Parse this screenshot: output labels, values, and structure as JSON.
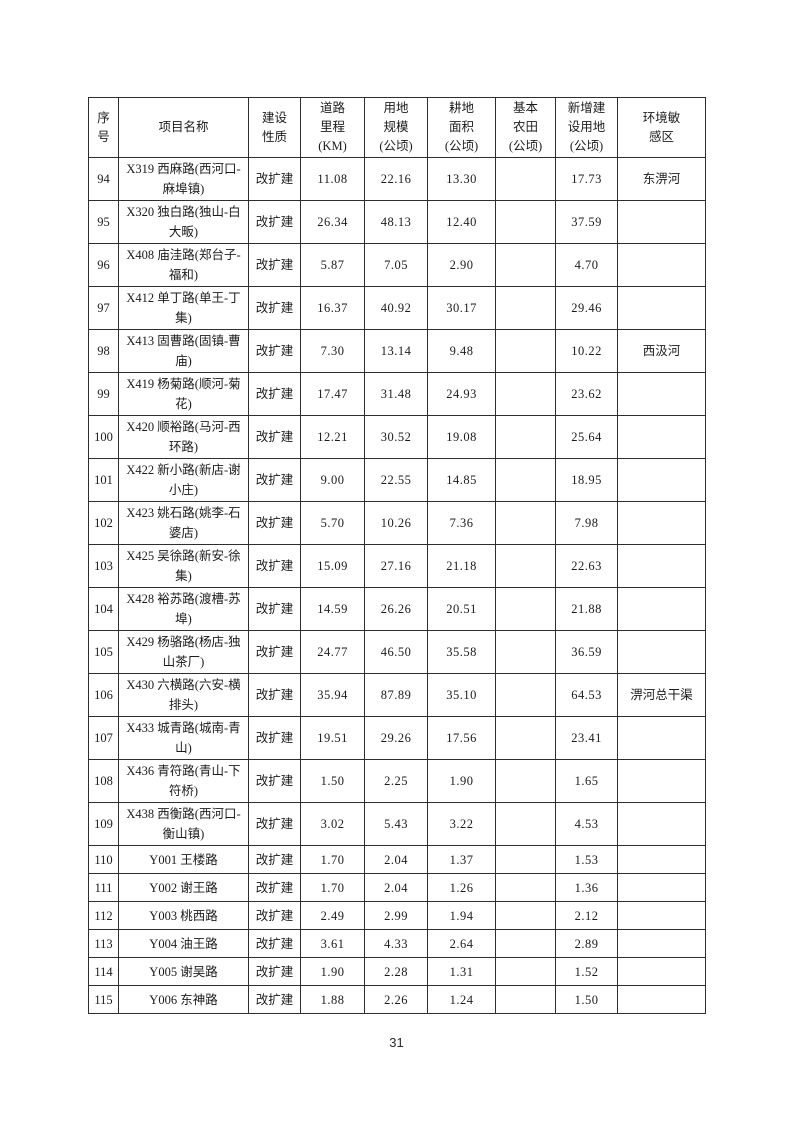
{
  "document": {
    "page_number": "31"
  },
  "table": {
    "columns": [
      {
        "key": "seq",
        "label": "序\n号"
      },
      {
        "key": "name",
        "label": "项目名称"
      },
      {
        "key": "nature",
        "label": "建设\n性质"
      },
      {
        "key": "mileage",
        "label": "道路\n里程\n(KM)"
      },
      {
        "key": "land",
        "label": "用地\n规模\n(公顷)"
      },
      {
        "key": "cultivated",
        "label": "耕地\n面积\n(公顷)"
      },
      {
        "key": "basic_farmland",
        "label": "基本\n农田\n(公顷)"
      },
      {
        "key": "new_land",
        "label": "新增建\n设用地\n(公顷)"
      },
      {
        "key": "env",
        "label": "环境敏\n感区"
      }
    ],
    "rows": [
      {
        "seq": "94",
        "name": "X319 西麻路(西河口-麻埠镇)",
        "nature": "改扩建",
        "mileage": "11.08",
        "land": "22.16",
        "cultivated": "13.30",
        "basic_farmland": "",
        "new_land": "17.73",
        "env": "东淠河"
      },
      {
        "seq": "95",
        "name": "X320 独白路(独山-白大畈)",
        "nature": "改扩建",
        "mileage": "26.34",
        "land": "48.13",
        "cultivated": "12.40",
        "basic_farmland": "",
        "new_land": "37.59",
        "env": ""
      },
      {
        "seq": "96",
        "name": "X408 庙洼路(郑台子-福和)",
        "nature": "改扩建",
        "mileage": "5.87",
        "land": "7.05",
        "cultivated": "2.90",
        "basic_farmland": "",
        "new_land": "4.70",
        "env": ""
      },
      {
        "seq": "97",
        "name": "X412 单丁路(单王-丁集)",
        "nature": "改扩建",
        "mileage": "16.37",
        "land": "40.92",
        "cultivated": "30.17",
        "basic_farmland": "",
        "new_land": "29.46",
        "env": ""
      },
      {
        "seq": "98",
        "name": "X413 固曹路(固镇-曹庙)",
        "nature": "改扩建",
        "mileage": "7.30",
        "land": "13.14",
        "cultivated": "9.48",
        "basic_farmland": "",
        "new_land": "10.22",
        "env": "西汲河"
      },
      {
        "seq": "99",
        "name": "X419 杨菊路(顺河-菊花)",
        "nature": "改扩建",
        "mileage": "17.47",
        "land": "31.48",
        "cultivated": "24.93",
        "basic_farmland": "",
        "new_land": "23.62",
        "env": ""
      },
      {
        "seq": "100",
        "name": "X420 顺裕路(马河-西环路)",
        "nature": "改扩建",
        "mileage": "12.21",
        "land": "30.52",
        "cultivated": "19.08",
        "basic_farmland": "",
        "new_land": "25.64",
        "env": ""
      },
      {
        "seq": "101",
        "name": "X422 新小路(新店-谢小庄)",
        "nature": "改扩建",
        "mileage": "9.00",
        "land": "22.55",
        "cultivated": "14.85",
        "basic_farmland": "",
        "new_land": "18.95",
        "env": ""
      },
      {
        "seq": "102",
        "name": "X423 姚石路(姚李-石婆店)",
        "nature": "改扩建",
        "mileage": "5.70",
        "land": "10.26",
        "cultivated": "7.36",
        "basic_farmland": "",
        "new_land": "7.98",
        "env": ""
      },
      {
        "seq": "103",
        "name": "X425 吴徐路(新安-徐集)",
        "nature": "改扩建",
        "mileage": "15.09",
        "land": "27.16",
        "cultivated": "21.18",
        "basic_farmland": "",
        "new_land": "22.63",
        "env": ""
      },
      {
        "seq": "104",
        "name": "X428 裕苏路(渡槽-苏埠)",
        "nature": "改扩建",
        "mileage": "14.59",
        "land": "26.26",
        "cultivated": "20.51",
        "basic_farmland": "",
        "new_land": "21.88",
        "env": ""
      },
      {
        "seq": "105",
        "name": "X429 杨骆路(杨店-独山茶厂)",
        "nature": "改扩建",
        "mileage": "24.77",
        "land": "46.50",
        "cultivated": "35.58",
        "basic_farmland": "",
        "new_land": "36.59",
        "env": ""
      },
      {
        "seq": "106",
        "name": "X430 六横路(六安-横排头)",
        "nature": "改扩建",
        "mileage": "35.94",
        "land": "87.89",
        "cultivated": "35.10",
        "basic_farmland": "",
        "new_land": "64.53",
        "env": "淠河总干渠"
      },
      {
        "seq": "107",
        "name": "X433 城青路(城南-青山)",
        "nature": "改扩建",
        "mileage": "19.51",
        "land": "29.26",
        "cultivated": "17.56",
        "basic_farmland": "",
        "new_land": "23.41",
        "env": ""
      },
      {
        "seq": "108",
        "name": "X436 青符路(青山-下符桥)",
        "nature": "改扩建",
        "mileage": "1.50",
        "land": "2.25",
        "cultivated": "1.90",
        "basic_farmland": "",
        "new_land": "1.65",
        "env": ""
      },
      {
        "seq": "109",
        "name": "X438 西衡路(西河口-衡山镇)",
        "nature": "改扩建",
        "mileage": "3.02",
        "land": "5.43",
        "cultivated": "3.22",
        "basic_farmland": "",
        "new_land": "4.53",
        "env": ""
      },
      {
        "seq": "110",
        "name": "Y001 王楼路",
        "nature": "改扩建",
        "mileage": "1.70",
        "land": "2.04",
        "cultivated": "1.37",
        "basic_farmland": "",
        "new_land": "1.53",
        "env": ""
      },
      {
        "seq": "111",
        "name": "Y002 谢王路",
        "nature": "改扩建",
        "mileage": "1.70",
        "land": "2.04",
        "cultivated": "1.26",
        "basic_farmland": "",
        "new_land": "1.36",
        "env": ""
      },
      {
        "seq": "112",
        "name": "Y003 桃西路",
        "nature": "改扩建",
        "mileage": "2.49",
        "land": "2.99",
        "cultivated": "1.94",
        "basic_farmland": "",
        "new_land": "2.12",
        "env": ""
      },
      {
        "seq": "113",
        "name": "Y004 油王路",
        "nature": "改扩建",
        "mileage": "3.61",
        "land": "4.33",
        "cultivated": "2.64",
        "basic_farmland": "",
        "new_land": "2.89",
        "env": ""
      },
      {
        "seq": "114",
        "name": "Y005 谢吴路",
        "nature": "改扩建",
        "mileage": "1.90",
        "land": "2.28",
        "cultivated": "1.31",
        "basic_farmland": "",
        "new_land": "1.52",
        "env": ""
      },
      {
        "seq": "115",
        "name": "Y006 东神路",
        "nature": "改扩建",
        "mileage": "1.88",
        "land": "2.26",
        "cultivated": "1.24",
        "basic_farmland": "",
        "new_land": "1.50",
        "env": ""
      }
    ]
  }
}
